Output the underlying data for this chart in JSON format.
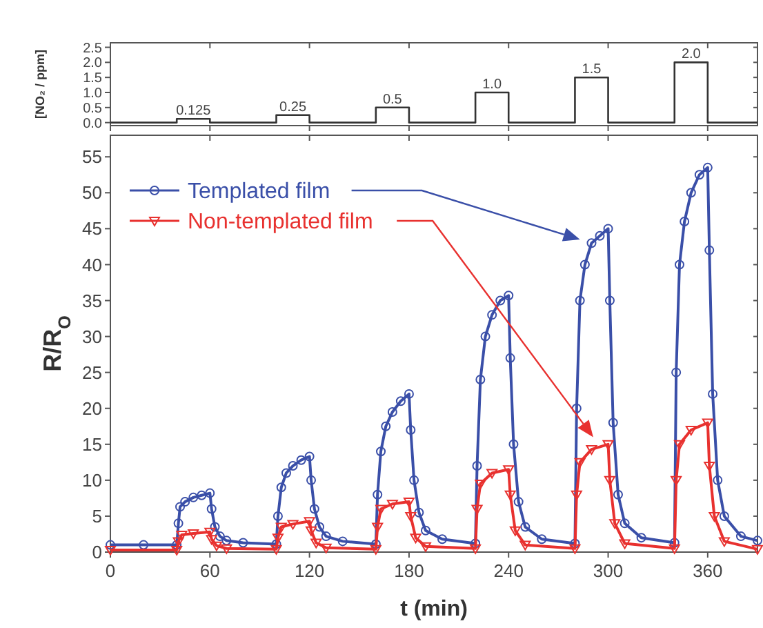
{
  "chart_data": [
    {
      "type": "step",
      "ylabel": "[NO₂ / ppm]",
      "xlim": [
        0,
        390
      ],
      "xticks": [
        0,
        60,
        120,
        180,
        240,
        300,
        360
      ],
      "ylim": [
        -0.1,
        2.65
      ],
      "yticks": [
        {
          "value": 0,
          "label": "0.0"
        },
        0.5,
        {
          "value": 1,
          "label": "1.0"
        },
        1.5,
        {
          "value": 2,
          "label": "2.0"
        },
        2.5
      ],
      "tick_labels": "y",
      "grid": false,
      "x": [
        0,
        40,
        60,
        100,
        120,
        160,
        180,
        220,
        240,
        280,
        300,
        340,
        360,
        390
      ],
      "series": [
        {
          "color": "#333333",
          "values": [
            0,
            0.125,
            0,
            0.25,
            0,
            0.5,
            0,
            1.0,
            0,
            1.5,
            0,
            2.0,
            0,
            0
          ]
        }
      ],
      "annotations": [
        {
          "text": "0.125",
          "x": 50,
          "y": 0.125
        },
        {
          "text": "0.25",
          "x": 110,
          "y": 0.25
        },
        {
          "text": "0.5",
          "x": 170,
          "y": 0.5
        },
        {
          "text": "1.0",
          "x": 230,
          "y": 1.0
        },
        {
          "text": "1.5",
          "x": 290,
          "y": 1.5
        },
        {
          "text": "2.0",
          "x": 350,
          "y": 2.0
        }
      ]
    },
    {
      "type": "line",
      "xlabel": "t (min)",
      "ylabel": "R/R$_{O}$",
      "xlim": [
        0,
        390
      ],
      "xticks": [
        0,
        60,
        120,
        180,
        240,
        300,
        360
      ],
      "ylim": [
        0,
        58
      ],
      "yticks": [
        0,
        5,
        10,
        15,
        20,
        25,
        30,
        35,
        40,
        45,
        50,
        55
      ],
      "grid": false,
      "legend": "top left",
      "line_style": "solid",
      "series": [
        {
          "name": "Templated film",
          "color": "#3a4fa8",
          "marker": "circle",
          "x": [
            0,
            20,
            40,
            41,
            42,
            45,
            50,
            55,
            60,
            61,
            63,
            66,
            70,
            80,
            100,
            101,
            103,
            106,
            110,
            115,
            120,
            121,
            123,
            126,
            130,
            140,
            160,
            161,
            163,
            166,
            170,
            175,
            180,
            181,
            183,
            186,
            190,
            200,
            220,
            221,
            223,
            226,
            230,
            235,
            240,
            241,
            243,
            246,
            250,
            260,
            280,
            281,
            283,
            286,
            290,
            295,
            300,
            301,
            303,
            306,
            310,
            320,
            340,
            341,
            343,
            346,
            350,
            355,
            360,
            361,
            363,
            366,
            370,
            380,
            390
          ],
          "values": [
            1,
            1,
            1,
            4,
            6.3,
            7,
            7.6,
            7.9,
            8.2,
            6,
            3.5,
            2.2,
            1.6,
            1.3,
            1.1,
            5,
            9,
            11,
            12,
            12.8,
            13.3,
            10,
            6,
            3.5,
            2.2,
            1.5,
            1.1,
            8,
            14,
            17.5,
            19.5,
            21,
            22,
            17,
            10,
            5.5,
            3,
            1.8,
            1.2,
            12,
            24,
            30,
            33,
            35,
            35.7,
            27,
            15,
            7,
            3.5,
            1.8,
            1.2,
            20,
            35,
            40,
            43,
            44,
            45,
            35,
            18,
            8,
            4,
            2,
            1.3,
            25,
            40,
            46,
            50,
            52.5,
            53.5,
            42,
            22,
            10,
            5,
            2.2,
            1.6
          ]
        },
        {
          "name": "Non-templated film",
          "color": "#e8312f",
          "marker": "triangle",
          "x": [
            0,
            40,
            41,
            43,
            50,
            60,
            61,
            64,
            70,
            100,
            101,
            103,
            110,
            120,
            121,
            124,
            130,
            160,
            161,
            163,
            170,
            180,
            181,
            184,
            190,
            220,
            221,
            223,
            230,
            240,
            241,
            244,
            250,
            280,
            281,
            283,
            290,
            300,
            301,
            304,
            310,
            340,
            341,
            343,
            350,
            360,
            361,
            364,
            370,
            390
          ],
          "values": [
            0.3,
            0.3,
            1.5,
            2.4,
            2.6,
            2.8,
            1.8,
            0.9,
            0.5,
            0.4,
            2,
            3.5,
            3.9,
            4.3,
            3,
            1.3,
            0.6,
            0.4,
            3.5,
            6,
            6.7,
            7,
            5,
            2,
            0.8,
            0.5,
            6,
            9.5,
            11,
            11.5,
            8,
            3,
            1,
            0.5,
            8,
            12.5,
            14.3,
            15,
            10,
            4,
            1.2,
            0.5,
            10,
            15,
            17,
            18,
            12,
            5,
            1.5,
            0.4
          ]
        }
      ]
    }
  ]
}
